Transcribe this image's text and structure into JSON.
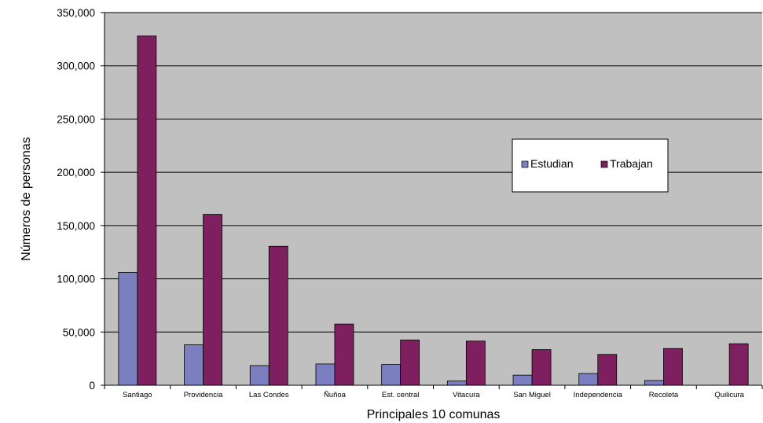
{
  "chart_data": {
    "type": "bar",
    "title": "",
    "xlabel": "Principales 10 comunas",
    "ylabel": "Números de personas",
    "ylim": [
      0,
      350000
    ],
    "yticks": [
      0,
      50000,
      100000,
      150000,
      200000,
      250000,
      300000,
      350000
    ],
    "ytick_labels": [
      "0",
      "50,000",
      "100,000",
      "150,000",
      "200,000",
      "250,000",
      "300,000",
      "350,000"
    ],
    "grid": "horizontal",
    "legend_position": "right",
    "background": "#c0c0c0",
    "categories": [
      "Santiago",
      "Providencia",
      "Las Condes",
      "Ñuñoa",
      "Est. central",
      "Vitacura",
      "San Miguel",
      "Independencia",
      "Recoleta",
      "Quilicura"
    ],
    "series": [
      {
        "name": "Estudian",
        "color": "#7b7fc0",
        "values": [
          106000,
          38000,
          18500,
          20000,
          19500,
          4000,
          9500,
          11000,
          4500,
          0
        ]
      },
      {
        "name": "Trabajan",
        "color": "#7e2060",
        "values": [
          328000,
          160500,
          130500,
          57500,
          42500,
          41500,
          33500,
          29000,
          34500,
          39000
        ]
      }
    ]
  }
}
